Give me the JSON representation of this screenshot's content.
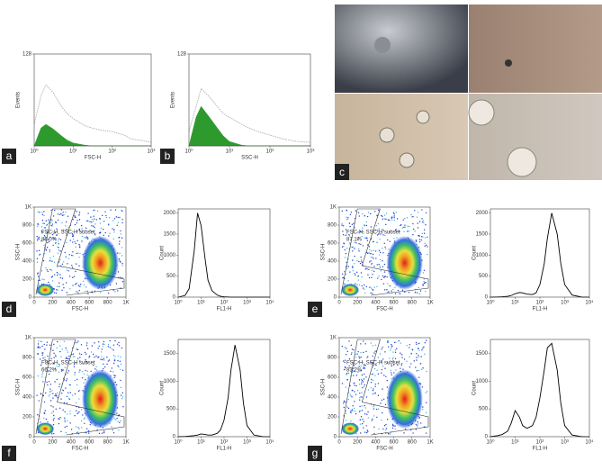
{
  "chart_data": [
    {
      "panel": "a",
      "type": "histogram",
      "xlabel": "FSC-H",
      "ylabel": "Events",
      "log_x": true,
      "xlim": [
        1,
        1000
      ],
      "xticks": [
        {
          "value": 1,
          "label": "10⁰"
        },
        {
          "value": 10,
          "label": "10¹"
        },
        {
          "value": 100,
          "label": "10²"
        },
        {
          "value": 1000,
          "label": "10³"
        }
      ],
      "ylim": [
        0,
        128
      ],
      "yticks": [
        128
      ],
      "x": [
        1,
        1.5,
        2,
        3,
        5,
        7,
        10,
        20,
        30,
        50,
        100,
        200,
        300,
        500,
        1000
      ],
      "series": [
        {
          "color": "#b0b0b0",
          "values": [
            30,
            70,
            85,
            75,
            55,
            45,
            38,
            28,
            25,
            22,
            20,
            15,
            10,
            8,
            5
          ]
        },
        {
          "color": "#2e9a2e",
          "fill": true,
          "values": [
            0,
            25,
            30,
            24,
            14,
            8,
            4,
            1,
            0,
            0,
            0,
            0,
            0,
            0,
            0
          ]
        }
      ]
    },
    {
      "panel": "b",
      "type": "histogram",
      "xlabel": "SSC-H",
      "ylabel": "Events",
      "log_x": true,
      "xlim": [
        1,
        1000
      ],
      "xticks": [
        {
          "value": 1,
          "label": "10⁰"
        },
        {
          "value": 10,
          "label": "10¹"
        },
        {
          "value": 100,
          "label": "10²"
        },
        {
          "value": 1000,
          "label": "10³"
        }
      ],
      "ylim": [
        0,
        128
      ],
      "yticks": [
        128
      ],
      "x": [
        1,
        1.5,
        2,
        3,
        5,
        7,
        10,
        20,
        30,
        50,
        100,
        200,
        300,
        500,
        1000
      ],
      "series": [
        {
          "color": "#b0b0b0",
          "values": [
            20,
            55,
            80,
            70,
            55,
            45,
            40,
            30,
            25,
            20,
            15,
            10,
            8,
            6,
            5
          ]
        },
        {
          "color": "#2e9a2e",
          "fill": true,
          "values": [
            0,
            40,
            55,
            42,
            25,
            14,
            6,
            1,
            0,
            0,
            0,
            0,
            0,
            0,
            0
          ]
        }
      ]
    },
    {
      "panel": "d",
      "type": "density",
      "xlabel": "FSC-H",
      "ylabel": "SSC-H",
      "gate": "FSC-H, SSC-H subset",
      "percent": "88.0%",
      "xlim": [
        0,
        1000
      ],
      "ylim": [
        0,
        1000
      ],
      "xticks": [
        0,
        200,
        400,
        600,
        800,
        {
          "value": 1000,
          "label": "1K"
        }
      ],
      "yticks": [
        0,
        200,
        400,
        600,
        800,
        {
          "value": 1000,
          "label": "1K"
        }
      ]
    },
    {
      "type": "line",
      "xlabel": "FL1-H",
      "ylabel": "Count",
      "log_x": true,
      "xlim": [
        1,
        10000
      ],
      "xticks": [
        {
          "value": 1,
          "label": "10⁰"
        },
        {
          "value": 10,
          "label": "10¹"
        },
        {
          "value": 100,
          "label": "10²"
        },
        {
          "value": 1000,
          "label": "10³"
        },
        {
          "value": 10000,
          "label": "10⁴"
        }
      ],
      "ylim": [
        0,
        2100
      ],
      "yticks": [
        0,
        500,
        1000,
        1500,
        2000
      ],
      "x": [
        1,
        2,
        3,
        5,
        7,
        10,
        15,
        20,
        30,
        50,
        70,
        100,
        150,
        200,
        300,
        500,
        700,
        1000,
        2000,
        5000,
        10000
      ],
      "series": [
        {
          "color": "#000000",
          "values": [
            0,
            40,
            200,
            1100,
            2000,
            1700,
            900,
            400,
            150,
            50,
            20,
            10,
            5,
            0,
            0,
            0,
            0,
            0,
            0,
            0,
            0
          ]
        }
      ]
    },
    {
      "panel": "e",
      "type": "density",
      "xlabel": "FSC-H",
      "ylabel": "SSC-H",
      "gate": "FSC-H, SSC-H subset",
      "percent": "87.1%",
      "xlim": [
        0,
        1000
      ],
      "ylim": [
        0,
        1000
      ],
      "xticks": [
        0,
        200,
        400,
        600,
        800,
        {
          "value": 1000,
          "label": "1K"
        }
      ],
      "yticks": [
        0,
        200,
        400,
        600,
        800,
        {
          "value": 1000,
          "label": "1K"
        }
      ]
    },
    {
      "type": "line",
      "xlabel": "FL1-H",
      "ylabel": "Count",
      "log_x": true,
      "xlim": [
        1,
        10000
      ],
      "xticks": [
        {
          "value": 1,
          "label": "10⁰"
        },
        {
          "value": 10,
          "label": "10¹"
        },
        {
          "value": 100,
          "label": "10²"
        },
        {
          "value": 1000,
          "label": "10³"
        },
        {
          "value": 10000,
          "label": "10⁴"
        }
      ],
      "ylim": [
        0,
        2100
      ],
      "yticks": [
        0,
        500,
        1000,
        1500,
        2000
      ],
      "x": [
        1,
        2,
        3,
        5,
        7,
        10,
        15,
        20,
        30,
        50,
        70,
        100,
        150,
        200,
        300,
        500,
        700,
        1000,
        2000,
        5000,
        10000
      ],
      "series": [
        {
          "color": "#000000",
          "values": [
            0,
            5,
            10,
            20,
            40,
            80,
            110,
            100,
            70,
            60,
            100,
            300,
            800,
            1400,
            2000,
            1500,
            800,
            300,
            50,
            0,
            0
          ]
        }
      ]
    },
    {
      "panel": "f",
      "type": "density",
      "xlabel": "FSC-H",
      "ylabel": "SSC-H",
      "gate": "FSC-H, SSC-H subset",
      "percent": "66.2%",
      "xlim": [
        0,
        1000
      ],
      "ylim": [
        0,
        1000
      ],
      "xticks": [
        0,
        200,
        400,
        600,
        800,
        {
          "value": 1000,
          "label": "1K"
        }
      ],
      "yticks": [
        0,
        200,
        400,
        600,
        800,
        {
          "value": 1000,
          "label": "1K"
        }
      ]
    },
    {
      "type": "line",
      "xlabel": "FL1-H",
      "ylabel": "Count",
      "log_x": true,
      "xlim": [
        1,
        10000
      ],
      "xticks": [
        {
          "value": 1,
          "label": "10⁰"
        },
        {
          "value": 10,
          "label": "10¹"
        },
        {
          "value": 100,
          "label": "10²"
        },
        {
          "value": 1000,
          "label": "10³"
        },
        {
          "value": 10000,
          "label": "10⁴"
        }
      ],
      "ylim": [
        0,
        1750
      ],
      "yticks": [
        0,
        500,
        1000,
        1500
      ],
      "x": [
        1,
        2,
        3,
        5,
        7,
        10,
        15,
        20,
        30,
        50,
        70,
        100,
        150,
        200,
        300,
        500,
        700,
        1000,
        2000,
        5000,
        10000
      ],
      "series": [
        {
          "color": "#000000",
          "values": [
            0,
            5,
            10,
            20,
            30,
            50,
            40,
            30,
            30,
            60,
            120,
            300,
            700,
            1200,
            1650,
            1200,
            600,
            200,
            30,
            0,
            0
          ]
        }
      ]
    },
    {
      "panel": "g",
      "type": "density",
      "xlabel": "FSC-H",
      "ylabel": "SSC-H",
      "gate": "FSC-H, SSC-H subset",
      "percent": "83.2%",
      "xlim": [
        0,
        1000
      ],
      "ylim": [
        0,
        1000
      ],
      "xticks": [
        0,
        200,
        400,
        600,
        800,
        {
          "value": 1000,
          "label": "1K"
        }
      ],
      "yticks": [
        0,
        200,
        400,
        600,
        800,
        {
          "value": 1000,
          "label": "1K"
        }
      ]
    },
    {
      "type": "line",
      "xlabel": "FL1-H",
      "ylabel": "Count",
      "log_x": true,
      "xlim": [
        1,
        10000
      ],
      "xticks": [
        {
          "value": 1,
          "label": "10⁰"
        },
        {
          "value": 10,
          "label": "10¹"
        },
        {
          "value": 100,
          "label": "10²"
        },
        {
          "value": 1000,
          "label": "10³"
        },
        {
          "value": 10000,
          "label": "10⁴"
        }
      ],
      "ylim": [
        0,
        1750
      ],
      "yticks": [
        0,
        500,
        1000,
        1500
      ],
      "x": [
        1,
        2,
        3,
        5,
        7,
        10,
        15,
        20,
        30,
        50,
        70,
        100,
        150,
        200,
        300,
        500,
        700,
        1000,
        2000,
        5000,
        10000
      ],
      "series": [
        {
          "color": "#000000",
          "values": [
            0,
            20,
            40,
            100,
            250,
            470,
            350,
            200,
            150,
            200,
            350,
            700,
            1200,
            1600,
            1680,
            1200,
            600,
            200,
            30,
            0,
            0
          ]
        }
      ]
    }
  ],
  "micrograph": {
    "panel": "c"
  }
}
